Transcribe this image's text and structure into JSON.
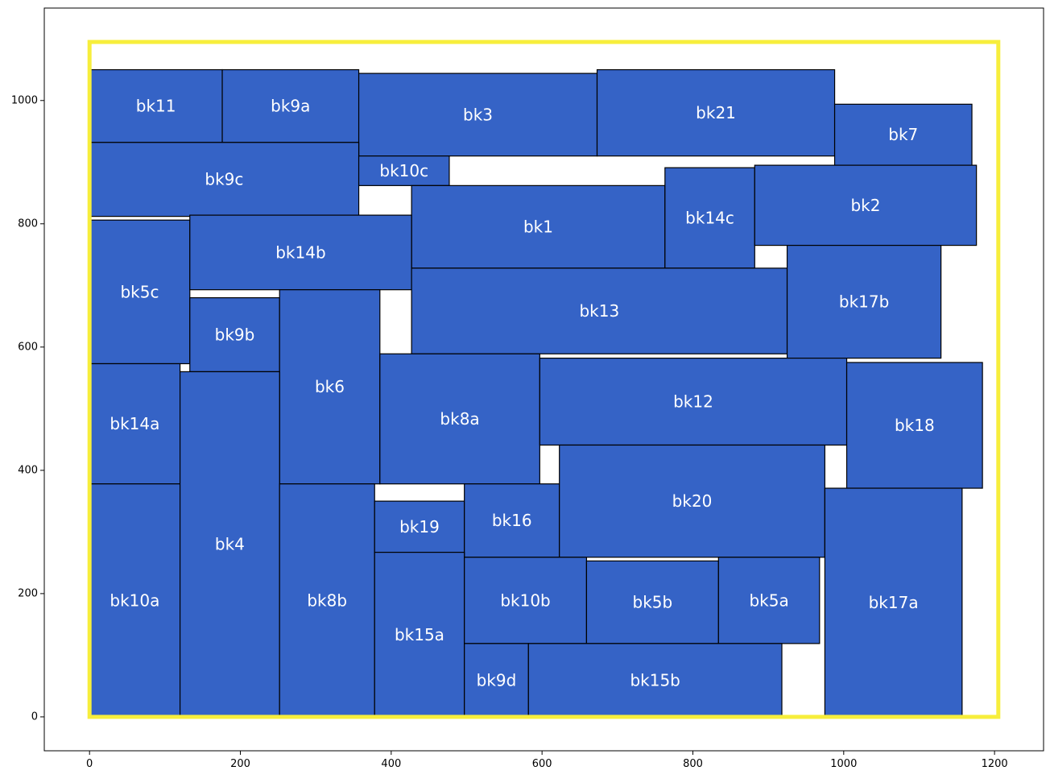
{
  "chart_data": {
    "type": "rectangle-packing",
    "title": "",
    "xlabel": "",
    "ylabel": "",
    "xlim": [
      -60,
      1265
    ],
    "ylim": [
      -55,
      1150
    ],
    "x_ticks": [
      0,
      200,
      400,
      600,
      800,
      1000,
      1200
    ],
    "y_ticks": [
      0,
      200,
      400,
      600,
      800,
      1000
    ],
    "x_tick_labels": [
      "0",
      "200",
      "400",
      "600",
      "800",
      "1000",
      "1200"
    ],
    "y_tick_labels": [
      "0",
      "200",
      "400",
      "600",
      "800",
      "1000"
    ],
    "grid": false,
    "colors": {
      "block_fill": "#3563c6",
      "block_edge": "#000000",
      "label_color": "#ffffff",
      "boundary": "#f7ee3c"
    },
    "boundary": {
      "x0": 0,
      "y0": 0,
      "x1": 1205,
      "y1": 1095
    },
    "blocks": [
      {
        "name": "bk11",
        "x0": 0,
        "y0": 932,
        "x1": 176,
        "y1": 1050
      },
      {
        "name": "bk9a",
        "x0": 176,
        "y0": 932,
        "x1": 357,
        "y1": 1050
      },
      {
        "name": "bk3",
        "x0": 357,
        "y0": 910,
        "x1": 673,
        "y1": 1044
      },
      {
        "name": "bk21",
        "x0": 673,
        "y0": 910,
        "x1": 988,
        "y1": 1050
      },
      {
        "name": "bk7",
        "x0": 988,
        "y0": 895,
        "x1": 1170,
        "y1": 994
      },
      {
        "name": "bk9c",
        "x0": 0,
        "y0": 812,
        "x1": 357,
        "y1": 932
      },
      {
        "name": "bk10c",
        "x0": 357,
        "y0": 862,
        "x1": 477,
        "y1": 910
      },
      {
        "name": "bk1",
        "x0": 427,
        "y0": 728,
        "x1": 763,
        "y1": 862
      },
      {
        "name": "bk14c",
        "x0": 763,
        "y0": 728,
        "x1": 882,
        "y1": 891
      },
      {
        "name": "bk2",
        "x0": 882,
        "y0": 765,
        "x1": 1176,
        "y1": 895
      },
      {
        "name": "bk5c",
        "x0": 0,
        "y0": 573,
        "x1": 133,
        "y1": 806
      },
      {
        "name": "bk14b",
        "x0": 133,
        "y0": 693,
        "x1": 427,
        "y1": 814
      },
      {
        "name": "bk9b",
        "x0": 133,
        "y0": 560,
        "x1": 252,
        "y1": 680
      },
      {
        "name": "bk6",
        "x0": 252,
        "y0": 378,
        "x1": 385,
        "y1": 693
      },
      {
        "name": "bk13",
        "x0": 427,
        "y0": 589,
        "x1": 925,
        "y1": 728
      },
      {
        "name": "bk17b",
        "x0": 925,
        "y0": 582,
        "x1": 1129,
        "y1": 765
      },
      {
        "name": "bk14a",
        "x0": 0,
        "y0": 378,
        "x1": 120,
        "y1": 573
      },
      {
        "name": "bk8a",
        "x0": 385,
        "y0": 378,
        "x1": 597,
        "y1": 589
      },
      {
        "name": "bk12",
        "x0": 597,
        "y0": 441,
        "x1": 1004,
        "y1": 582
      },
      {
        "name": "bk18",
        "x0": 1004,
        "y0": 371,
        "x1": 1184,
        "y1": 575
      },
      {
        "name": "bk10a",
        "x0": 0,
        "y0": 0,
        "x1": 120,
        "y1": 378
      },
      {
        "name": "bk4",
        "x0": 120,
        "y0": 0,
        "x1": 252,
        "y1": 560
      },
      {
        "name": "bk8b",
        "x0": 252,
        "y0": 0,
        "x1": 378,
        "y1": 378
      },
      {
        "name": "bk19",
        "x0": 378,
        "y0": 267,
        "x1": 497,
        "y1": 350
      },
      {
        "name": "bk16",
        "x0": 497,
        "y0": 259,
        "x1": 623,
        "y1": 378
      },
      {
        "name": "bk20",
        "x0": 623,
        "y0": 259,
        "x1": 975,
        "y1": 441
      },
      {
        "name": "bk15a",
        "x0": 378,
        "y0": 0,
        "x1": 497,
        "y1": 267
      },
      {
        "name": "bk10b",
        "x0": 497,
        "y0": 119,
        "x1": 659,
        "y1": 259
      },
      {
        "name": "bk5b",
        "x0": 659,
        "y0": 119,
        "x1": 834,
        "y1": 253
      },
      {
        "name": "bk5a",
        "x0": 834,
        "y0": 119,
        "x1": 968,
        "y1": 259
      },
      {
        "name": "bk17a",
        "x0": 975,
        "y0": 0,
        "x1": 1157,
        "y1": 371
      },
      {
        "name": "bk9d",
        "x0": 497,
        "y0": 0,
        "x1": 582,
        "y1": 119
      },
      {
        "name": "bk15b",
        "x0": 582,
        "y0": 0,
        "x1": 918,
        "y1": 119
      }
    ]
  }
}
